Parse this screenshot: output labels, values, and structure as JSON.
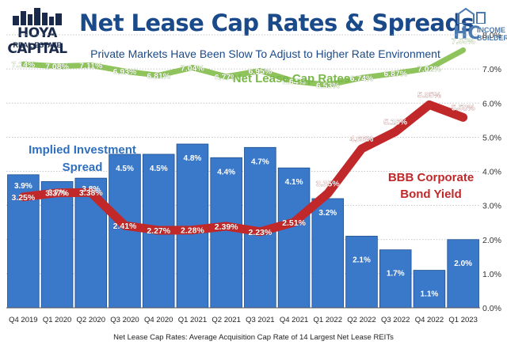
{
  "header": {
    "title": "Net Lease Cap Rates & Spreads",
    "subtitle": "Private Markets Have Been Slow To Adjust to Higher Rate Environment",
    "logo_left_line1": "HOYA CAPITAL",
    "logo_left_line2": "REAL ESTATE",
    "logo_right_mark": "HC",
    "logo_right_line1": "INCOME",
    "logo_right_line2": "BUILDER"
  },
  "colors": {
    "bar": "#3a78c9",
    "bar_edge": "#1f4f90",
    "bond_line": "#c0282a",
    "cap_line": "#8fc35c",
    "title": "#1a4a8a",
    "grid": "#b5b5b5"
  },
  "chart_data": {
    "type": "bar",
    "categories": [
      "Q4 2019",
      "Q1 2020",
      "Q2 2020",
      "Q3 2020",
      "Q4 2020",
      "Q1 2021",
      "Q2 2021",
      "Q3 2021",
      "Q4 2021",
      "Q1 2022",
      "Q2 2022",
      "Q3 2022",
      "Q4 2022",
      "Q1 2023"
    ],
    "ylim": [
      0,
      8
    ],
    "y_ticks": [
      "0.0%",
      "1.0%",
      "2.0%",
      "3.0%",
      "4.0%",
      "5.0%",
      "6.0%",
      "7.0%",
      "8.0%"
    ],
    "gridlines": true,
    "series": [
      {
        "name": "Implied Investment Spread",
        "kind": "bar",
        "values": [
          3.9,
          3.7,
          3.8,
          4.5,
          4.5,
          4.8,
          4.4,
          4.7,
          4.1,
          3.2,
          2.1,
          1.7,
          1.1,
          2.0
        ],
        "labels": [
          "3.9%",
          "3.7%",
          "3.8%",
          "4.5%",
          "4.5%",
          "4.8%",
          "4.4%",
          "4.7%",
          "4.1%",
          "3.2%",
          "2.1%",
          "1.7%",
          "1.1%",
          "2.0%"
        ]
      },
      {
        "name": "BBB Corporate Bond Yield",
        "kind": "line",
        "values": [
          3.25,
          3.37,
          3.38,
          2.41,
          2.27,
          2.28,
          2.39,
          2.23,
          2.51,
          3.35,
          4.66,
          5.16,
          5.95,
          5.58
        ],
        "labels": [
          "3.25%",
          "3.37%",
          "3.38%",
          "2.41%",
          "2.27%",
          "2.28%",
          "2.39%",
          "2.23%",
          "2.51%",
          "3.35%",
          "4.66%",
          "5.16%",
          "5.95%",
          "5.58%"
        ]
      },
      {
        "name": "Net Lease Cap Rates",
        "kind": "line",
        "values": [
          7.14,
          7.08,
          7.11,
          6.93,
          6.81,
          7.04,
          6.77,
          6.95,
          6.64,
          6.53,
          6.74,
          6.87,
          7.02,
          7.55
        ],
        "labels": [
          "7.14%",
          "7.08%",
          "7.11%",
          "6.93%",
          "6.81%",
          "7.04%",
          "6.77%",
          "6.95%",
          "6.64%",
          "6.53%",
          "6.74%",
          "6.87%",
          "7.02%",
          "7.55%"
        ]
      }
    ],
    "annotations": {
      "spread_line1": "Implied Investment",
      "spread_line2": "Spread",
      "bond_line1": "BBB Corporate",
      "bond_line2": "Bond Yield",
      "cap": "Net Lease Cap Rates"
    },
    "footnote": "Net Lease Cap Rates: Average Acquisition Cap Rate of 14 Largest Net Lease REITs"
  }
}
